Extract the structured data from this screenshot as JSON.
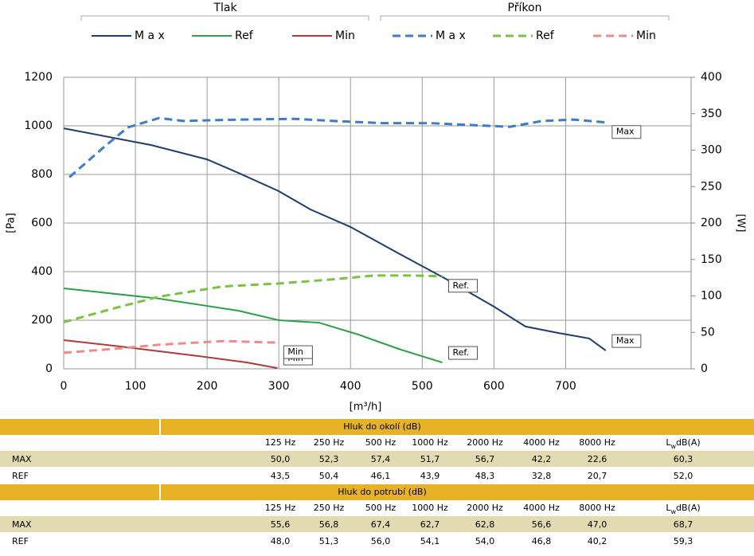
{
  "chart_data": {
    "type": "line",
    "legend_groups": [
      {
        "title": "Tlak",
        "series": [
          0,
          1,
          2
        ]
      },
      {
        "title": "Příkon",
        "series": [
          3,
          4,
          5
        ]
      }
    ],
    "xlabel": "[m³/h]",
    "ylabel": "[Pa]",
    "y2label": "[W]",
    "xlim": [
      0,
      875
    ],
    "xticks": [
      0,
      100,
      200,
      300,
      400,
      500,
      600,
      700
    ],
    "ylim": [
      0,
      1200
    ],
    "yticks": [
      0,
      200,
      400,
      600,
      800,
      1000,
      1200
    ],
    "y2lim": [
      0,
      400
    ],
    "y2ticks": [
      0,
      50,
      100,
      150,
      200,
      250,
      300,
      350,
      400
    ],
    "grid": true,
    "series": [
      {
        "name": "M a x",
        "color": "#1f3d6e",
        "dash": false,
        "axis": "y",
        "x": [
          0,
          122,
          200,
          244,
          300,
          344,
          400,
          467,
          533,
          600,
          644,
          689,
          733,
          756
        ],
        "values": [
          990,
          921,
          862,
          806,
          731,
          656,
          584,
          475,
          370,
          256,
          174,
          148,
          125,
          75
        ],
        "label": "Max"
      },
      {
        "name": "Ref",
        "color": "#2ea04a",
        "dash": false,
        "axis": "y",
        "x": [
          0,
          133,
          244,
          300,
          356,
          411,
          467,
          528
        ],
        "values": [
          331,
          289,
          239,
          200,
          190,
          141,
          82,
          26
        ],
        "label": "Ref."
      },
      {
        "name": "Min",
        "color": "#b03a3a",
        "dash": false,
        "axis": "y",
        "x": [
          0,
          78,
          189,
          256,
          298
        ],
        "values": [
          118,
          92,
          52,
          26,
          3
        ],
        "label": "Min"
      },
      {
        "name": "M a x",
        "color": "#3d7cc9",
        "dash": true,
        "axis": "y2",
        "x": [
          8,
          56,
          89,
          133,
          167,
          244,
          322,
          378,
          444,
          511,
          578,
          622,
          667,
          711,
          756
        ],
        "values": [
          263,
          304,
          331,
          344,
          340,
          342,
          343,
          340,
          337,
          337,
          334,
          332,
          340,
          342,
          338
        ],
        "label": "Max"
      },
      {
        "name": "Ref",
        "color": "#7cc242",
        "dash": true,
        "axis": "y2",
        "x": [
          0,
          78,
          133,
          222,
          300,
          378,
          433,
          489,
          528
        ],
        "values": [
          64,
          85,
          99,
          113,
          117,
          123,
          128,
          128,
          127
        ],
        "label": "Ref."
      },
      {
        "name": "Min",
        "color": "#f08a8a",
        "dash": true,
        "axis": "y2",
        "x": [
          0,
          78,
          133,
          222,
          298
        ],
        "values": [
          22,
          28,
          33,
          38,
          36
        ],
        "label": "Min"
      }
    ]
  },
  "tables": [
    {
      "title": "Hluk do okolí (dB)",
      "columns": [
        "125 Hz",
        "250 Hz",
        "500 Hz",
        "1000 Hz",
        "2000 Hz",
        "4000 Hz",
        "8000 Hz"
      ],
      "lw": [
        "L",
        "w",
        "dB(A)"
      ],
      "rows": [
        [
          "MAX",
          "50,0",
          "52,3",
          "57,4",
          "51,7",
          "56,7",
          "42,2",
          "22,6",
          "60,3"
        ],
        [
          "REF",
          "43,5",
          "50,4",
          "46,1",
          "43,9",
          "48,3",
          "32,8",
          "20,7",
          "52,0"
        ]
      ]
    },
    {
      "title": "Hluk do potrubí (dB)",
      "columns": [
        "125 Hz",
        "250 Hz",
        "500 Hz",
        "1000 Hz",
        "2000 Hz",
        "4000 Hz",
        "8000 Hz"
      ],
      "lw": [
        "L",
        "w",
        "dB(A)"
      ],
      "rows": [
        [
          "MAX",
          "55,6",
          "56,8",
          "67,4",
          "62,7",
          "62,8",
          "56,6",
          "47,0",
          "68,7"
        ],
        [
          "REF",
          "48,0",
          "51,3",
          "56,0",
          "54,1",
          "54,0",
          "46,8",
          "40,2",
          "59,3"
        ]
      ]
    }
  ]
}
